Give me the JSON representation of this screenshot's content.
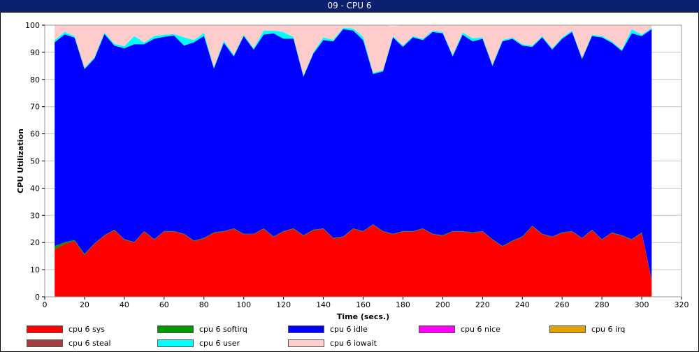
{
  "window": {
    "title": "09 - CPU 6"
  },
  "chart_data": {
    "type": "area",
    "stacked": true,
    "xlabel": "Time (secs.)",
    "ylabel": "CPU Utilization",
    "xlim": [
      0,
      320
    ],
    "ylim": [
      0,
      100
    ],
    "xticks": [
      0,
      20,
      40,
      60,
      80,
      100,
      120,
      140,
      160,
      180,
      200,
      220,
      240,
      260,
      280,
      300,
      320
    ],
    "yticks": [
      0,
      10,
      20,
      30,
      40,
      50,
      60,
      70,
      80,
      90,
      100
    ],
    "grid": true,
    "legend_position": "bottom",
    "x": [
      5,
      10,
      15,
      20,
      25,
      30,
      35,
      40,
      45,
      50,
      55,
      60,
      65,
      70,
      75,
      80,
      85,
      90,
      95,
      100,
      105,
      110,
      115,
      120,
      125,
      130,
      135,
      140,
      145,
      150,
      155,
      160,
      165,
      170,
      175,
      180,
      185,
      190,
      195,
      200,
      205,
      210,
      215,
      220,
      225,
      230,
      235,
      240,
      245,
      250,
      255,
      260,
      265,
      270,
      275,
      280,
      285,
      290,
      295,
      300,
      305
    ],
    "series": [
      {
        "name": "cpu 6 sys",
        "color": "#ff0000",
        "values": [
          17.5,
          19.5,
          20.5,
          15.5,
          19.5,
          22.5,
          24.5,
          21,
          20,
          24,
          21,
          24,
          24,
          23,
          20.5,
          21.5,
          23.5,
          24,
          25,
          23,
          23,
          25,
          22,
          24,
          25,
          22.5,
          24.5,
          25,
          21.5,
          22,
          25,
          24,
          26.5,
          24,
          23,
          24,
          24,
          25,
          23,
          22.5,
          24,
          24,
          23.5,
          24,
          21,
          18.5,
          20.5,
          22,
          26,
          23,
          22,
          23.5,
          24,
          21.5,
          24.5,
          21,
          23.5,
          22.5,
          21,
          23.5,
          6
        ]
      },
      {
        "name": "cpu 6 softirq",
        "color": "#009900",
        "values": [
          1.2,
          0.6,
          0.4,
          0.3,
          0.2,
          0.2,
          0.2,
          0.2,
          0.2,
          0.2,
          0.2,
          0.2,
          0.2,
          0.2,
          0.2,
          0.2,
          0.2,
          0.2,
          0.2,
          0.2,
          0.2,
          0.2,
          0.2,
          0.2,
          0.2,
          0.2,
          0.2,
          0.2,
          0.2,
          0.2,
          0.2,
          0.2,
          0.2,
          0.2,
          0.2,
          0.2,
          0.2,
          0.2,
          0.2,
          0.2,
          0.2,
          0.2,
          0.2,
          0.2,
          0.2,
          0.2,
          0.2,
          0.2,
          0.2,
          0.2,
          0.2,
          0.2,
          0.2,
          0.2,
          0.2,
          0.2,
          0.2,
          0.2,
          0.2,
          0.2,
          0.2
        ]
      },
      {
        "name": "cpu 6 idle",
        "color": "#0000ff",
        "values": [
          75,
          76.5,
          74.5,
          68,
          68,
          74,
          67.8,
          70.3,
          72.8,
          68.8,
          73.8,
          71.5,
          72,
          69.3,
          73,
          74.3,
          60.3,
          69.3,
          63.3,
          72.8,
          67.8,
          71.3,
          74.8,
          70.8,
          69.8,
          58.3,
          64.8,
          69.3,
          72.3,
          76.3,
          72.8,
          70.3,
          55.3,
          58.8,
          72.3,
          67.8,
          71.3,
          69.3,
          74.3,
          74.3,
          64.3,
          72.3,
          70.3,
          70.8,
          63.8,
          75.3,
          74.3,
          70.3,
          65.8,
          72.3,
          68.8,
          71.3,
          73.3,
          65.8,
          71.3,
          74.3,
          69.8,
          67.8,
          75.8,
          72.3,
          92.3
        ]
      },
      {
        "name": "cpu 6 nice",
        "color": "#ff00ff",
        "values": [
          0,
          0,
          0,
          0,
          0,
          0,
          0,
          0,
          0,
          0,
          0,
          0,
          0,
          0,
          0,
          0,
          0,
          0,
          0,
          0,
          0,
          0,
          0,
          0,
          0,
          0,
          0,
          0,
          0,
          0,
          0,
          0,
          0,
          0,
          0,
          0,
          0,
          0,
          0,
          0,
          0,
          0,
          0,
          0,
          0,
          0,
          0,
          0,
          0,
          0,
          0,
          0,
          0,
          0,
          0,
          0,
          0,
          0,
          0,
          0,
          0
        ]
      },
      {
        "name": "cpu 6 irq",
        "color": "#e0a000",
        "values": [
          0,
          0,
          0,
          0,
          0,
          0,
          0,
          0,
          0,
          0,
          0,
          0,
          0,
          0,
          0,
          0,
          0,
          0,
          0,
          0,
          0,
          0,
          0,
          0,
          0,
          0,
          0,
          0,
          0,
          0,
          0,
          0,
          0,
          0,
          0,
          0,
          0,
          0,
          0,
          0,
          0,
          0,
          0,
          0,
          0,
          0,
          0,
          0,
          0,
          0,
          0,
          0,
          0,
          0,
          0,
          0,
          0,
          0,
          0,
          0,
          0
        ]
      },
      {
        "name": "cpu 6 steal",
        "color": "#a04040",
        "values": [
          0,
          0,
          0,
          0,
          0,
          0,
          0,
          0,
          0,
          0,
          0,
          0,
          0,
          0,
          0,
          0,
          0,
          0,
          0,
          0,
          0,
          0,
          0,
          0,
          0,
          0,
          0,
          0,
          0,
          0,
          0,
          0,
          0,
          0,
          0,
          0,
          0,
          0,
          0,
          0,
          0,
          0,
          0,
          0,
          0,
          0,
          0,
          0,
          0,
          0,
          0,
          0,
          0,
          0,
          0,
          0,
          0,
          0,
          0,
          0,
          0
        ]
      },
      {
        "name": "cpu 6 user",
        "color": "#00ffff",
        "values": [
          0.8,
          0.9,
          0.6,
          0.5,
          0.5,
          0.6,
          0.6,
          0.8,
          3,
          0.6,
          1,
          0.8,
          0.5,
          3,
          0.8,
          1.2,
          0.5,
          0.8,
          0.5,
          0.5,
          0.5,
          1.5,
          1,
          2.5,
          0.6,
          0.5,
          0.5,
          1,
          0.6,
          0.5,
          0.8,
          1.2,
          0.5,
          0.5,
          0.5,
          0.5,
          0.5,
          0.5,
          0.5,
          0.5,
          0.5,
          0.8,
          1.2,
          0.5,
          0.5,
          0.5,
          0.5,
          0.5,
          0.5,
          0.5,
          0.5,
          0.5,
          0.5,
          0.5,
          0.5,
          0.5,
          0.5,
          0.5,
          1.5,
          0.5,
          0.5
        ]
      },
      {
        "name": "cpu 6 iowait",
        "color": "#ffcccc",
        "values": [
          5.5,
          2.5,
          4,
          15.7,
          11.8,
          2.7,
          6.9,
          7.7,
          3.8,
          6.4,
          3.8,
          3.5,
          3.3,
          4.3,
          5.5,
          2.8,
          15.5,
          5.7,
          11,
          3.5,
          8.5,
          1.8,
          2,
          2.5,
          4.4,
          18.5,
          10,
          4.5,
          5.4,
          1,
          1.2,
          4.3,
          17.5,
          16.5,
          3.5,
          7.5,
          4,
          5,
          2,
          2.5,
          11,
          2.7,
          4.8,
          4.5,
          14.5,
          5.5,
          4.5,
          7,
          7.5,
          4,
          8.5,
          4.5,
          2,
          12,
          3.5,
          4,
          6,
          9,
          1.5,
          3.5,
          1
        ]
      }
    ]
  }
}
